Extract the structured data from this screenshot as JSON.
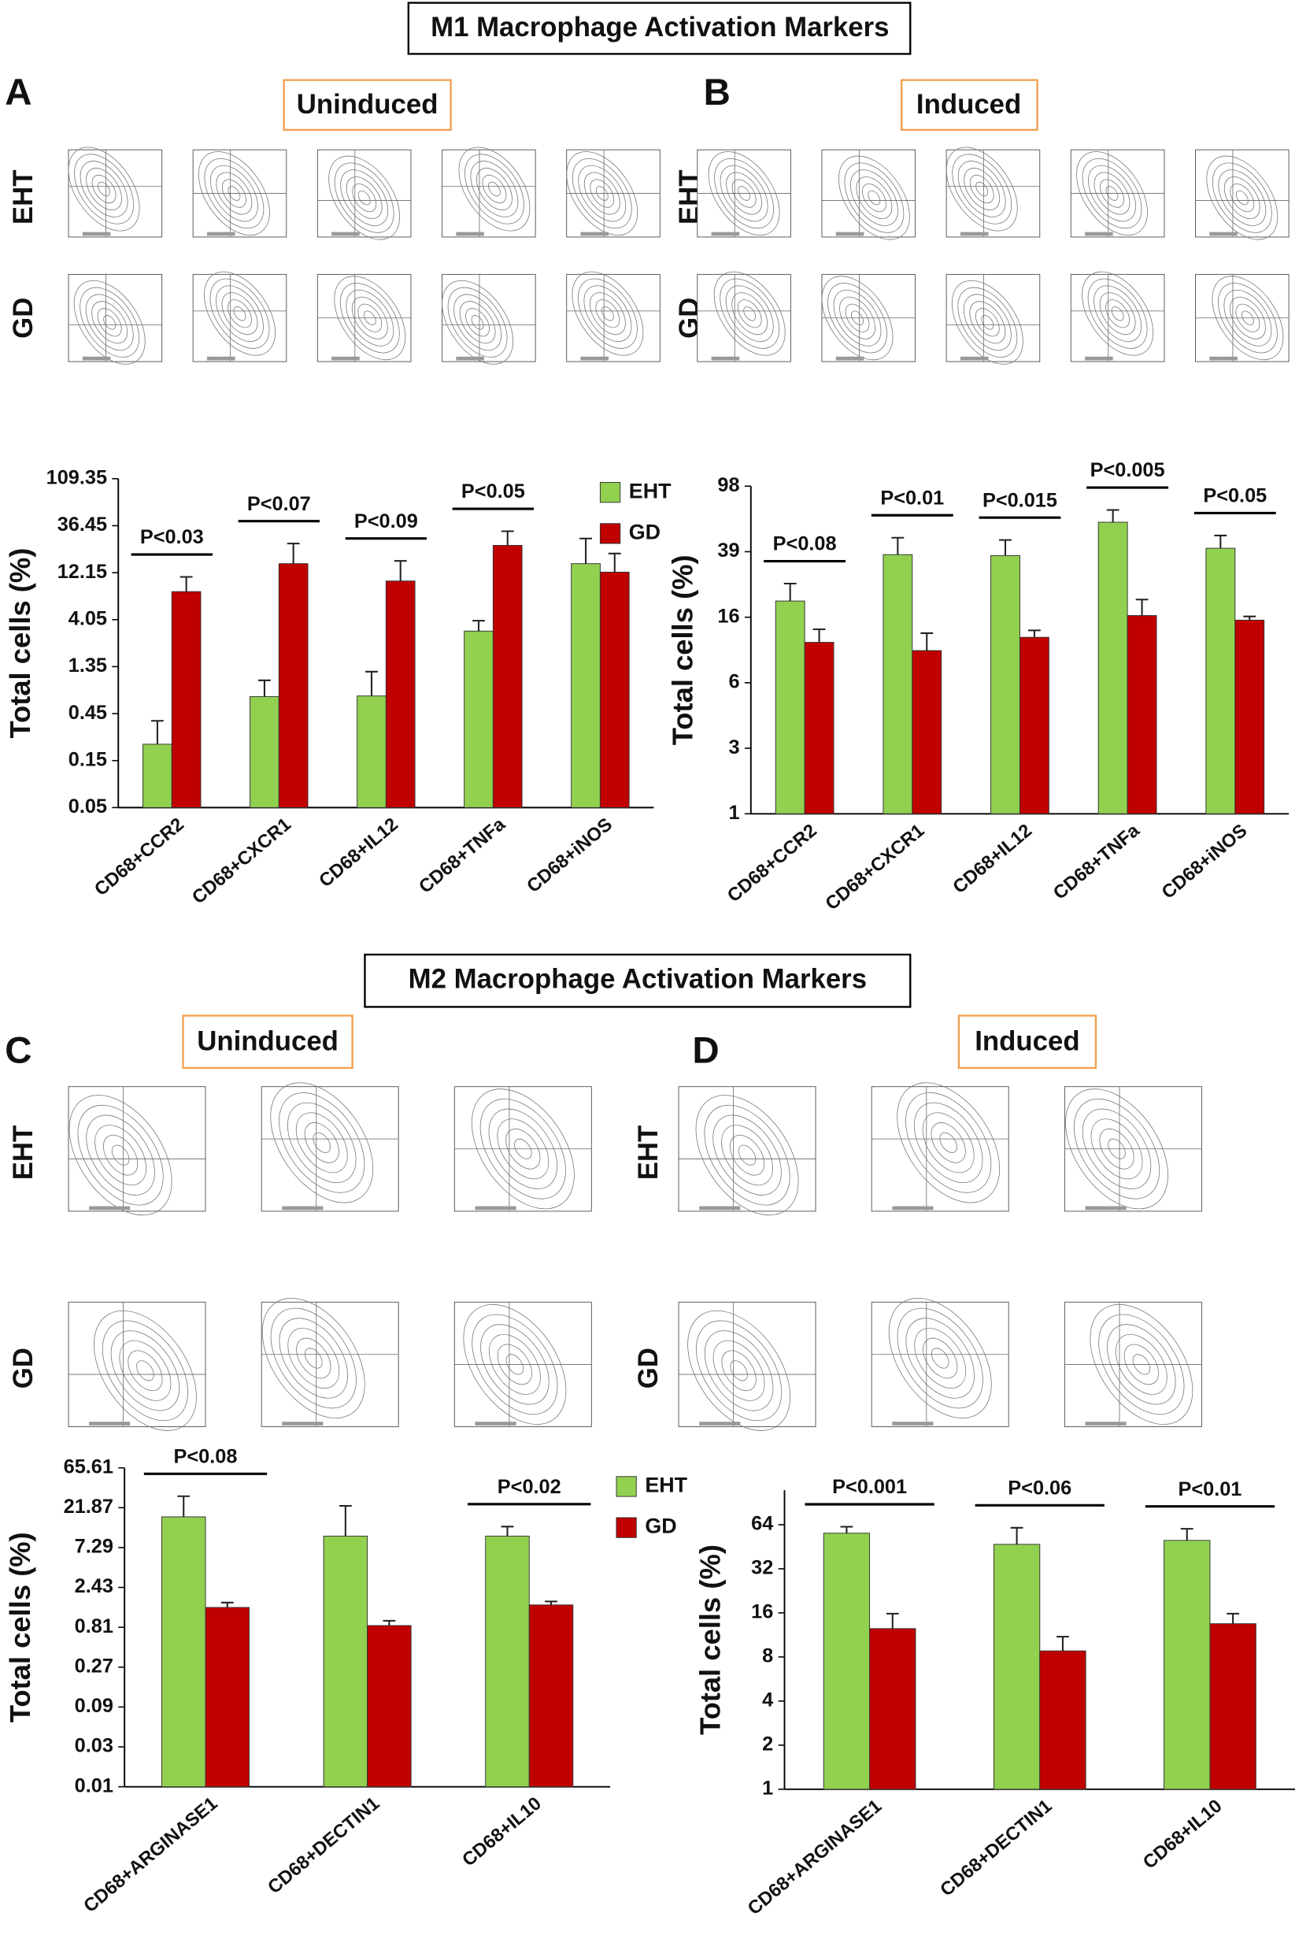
{
  "sections": [
    {
      "title": "M1 Macrophage Activation Markers"
    },
    {
      "title": "M2 Macrophage Activation Markers"
    }
  ],
  "panels": [
    {
      "label": "A",
      "condition": "Uninduced",
      "rows": [
        "EHT",
        "GD"
      ]
    },
    {
      "label": "B",
      "condition": "Induced",
      "rows": [
        "EHT",
        "GD"
      ]
    },
    {
      "label": "C",
      "condition": "Uninduced",
      "rows": [
        "EHT",
        "GD"
      ]
    },
    {
      "label": "D",
      "condition": "Induced",
      "rows": [
        "EHT",
        "GD"
      ]
    }
  ],
  "chart_data": [
    {
      "type": "bar",
      "y_label": "Total cells (%)",
      "log_scale": true,
      "legend": "top-right",
      "categories": [
        "CD68+CCR2",
        "CD68+CXCR1",
        "CD68+IL12",
        "CD68+TNFa",
        "CD68+iNOS"
      ],
      "series": [
        {
          "name": "EHT",
          "color": "#92d050",
          "values": [
            0.22,
            0.67,
            0.68,
            3.1,
            15
          ],
          "errors": [
            0.16,
            0.31,
            0.52,
            0.85,
            12
          ]
        },
        {
          "name": "GD",
          "color": "#c00000",
          "values": [
            7.8,
            15,
            10,
            23,
            12.3
          ],
          "errors": [
            3.2,
            9,
            6,
            9,
            6.7
          ]
        }
      ],
      "pvalues": [
        "P<0.03",
        "P<0.07",
        "P<0.09",
        "P<0.05",
        null
      ],
      "ylim": [
        0.05,
        109.35
      ],
      "yticks": [
        0.05,
        0.15,
        0.45,
        1.35,
        4.05,
        12.15,
        36.45,
        109.35
      ]
    },
    {
      "type": "bar",
      "y_label": "Total cells (%)",
      "log_scale": true,
      "categories": [
        "CD68+CCR2",
        "CD68+CXCR1",
        "CD68+IL12",
        "CD68+TNFa",
        "CD68+iNOS"
      ],
      "series": [
        {
          "color": "#92d050",
          "values": [
            19.6,
            37.5,
            37,
            59,
            41
          ],
          "errors": [
            5.4,
            10,
            9,
            11,
            8
          ]
        },
        {
          "color": "#c00000",
          "values": [
            11,
            9.8,
            11.8,
            16,
            15
          ],
          "errors": [
            2.2,
            2.7,
            1.2,
            4,
            0.8
          ]
        }
      ],
      "pvalues": [
        "P<0.08",
        "P<0.01",
        "P<0.015",
        "P<0.005",
        "P<0.05"
      ],
      "ylim": [
        1,
        97.65625
      ],
      "yticks": [
        1,
        {
          "value": 2.5,
          "label": "3"
        },
        {
          "value": 6.25,
          "label": "6"
        },
        {
          "value": 15.625,
          "label": "16"
        },
        {
          "value": 39.0625,
          "label": "39"
        },
        {
          "value": 97.65625,
          "label": "98"
        }
      ]
    },
    {
      "type": "bar",
      "y_label": "Total cells (%)",
      "log_scale": true,
      "legend": "top-right",
      "categories": [
        "CD68+ARGINASE1",
        "CD68+DECTIN1",
        "CD68+IL10"
      ],
      "series": [
        {
          "name": "EHT",
          "color": "#92d050",
          "values": [
            17,
            10,
            10
          ],
          "errors": [
            13,
            13,
            3
          ]
        },
        {
          "name": "GD",
          "color": "#c00000",
          "values": [
            1.4,
            0.85,
            1.5
          ],
          "errors": [
            0.2,
            0.12,
            0.15
          ]
        }
      ],
      "pvalues": [
        "P<0.08",
        null,
        "P<0.02"
      ],
      "ylim": [
        0.01,
        65.61
      ],
      "yticks": [
        0.01,
        0.03,
        0.09,
        0.27,
        0.81,
        2.43,
        7.29,
        21.87,
        65.61
      ]
    },
    {
      "type": "bar",
      "y_label": "Total cells (%)",
      "log_scale": true,
      "categories": [
        "CD68+ARGINASE1",
        "CD68+DECTIN1",
        "CD68+IL10"
      ],
      "series": [
        {
          "color": "#92d050",
          "values": [
            56,
            47,
            50
          ],
          "errors": [
            6,
            14,
            10
          ]
        },
        {
          "color": "#c00000",
          "values": [
            12.5,
            8.8,
            13.5
          ],
          "errors": [
            3.3,
            2.2,
            2.3
          ]
        }
      ],
      "pvalues": [
        "P<0.001",
        "P<0.06",
        "P<0.01"
      ],
      "ylim": [
        1,
        110
      ],
      "yticks": [
        1,
        2,
        4,
        8,
        16,
        32,
        64
      ]
    }
  ]
}
